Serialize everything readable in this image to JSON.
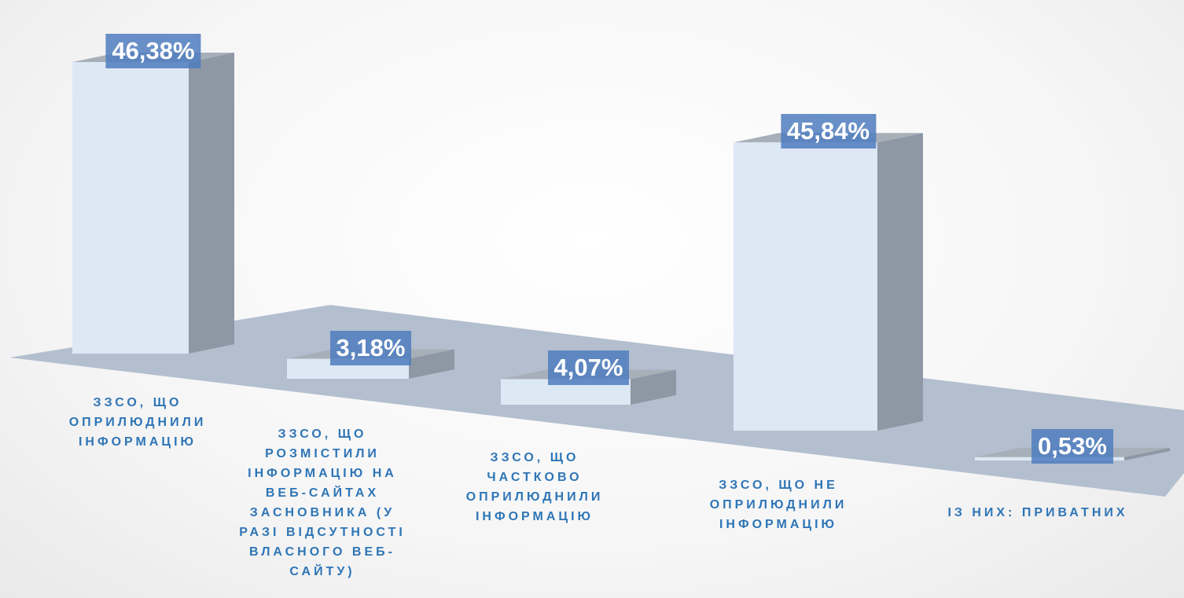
{
  "chart_data": {
    "type": "bar3d",
    "categories": [
      "ЗЗСО, ЩО ОПРИЛЮДНИЛИ ІНФОРМАЦІЮ",
      "ЗЗСО, ЩО РОЗМІСТИЛИ ІНФОРМАЦІЮ НА ВЕБ-САЙТАХ ЗАСНОВНИКА (У РАЗІ ВІДСУТНОСТІ ВЛАСНОГО ВЕБ-САЙТУ)",
      "ЗЗСО, ЩО ЧАСТКОВО ОПРИЛЮДНИЛИ ІНФОРМАЦІЮ",
      "ЗЗСО, ЩО НЕ ОПРИЛЮДНИЛИ ІНФОРМАЦІЮ",
      "ІЗ НИХ: ПРИВАТНИХ"
    ],
    "values": [
      46.38,
      3.18,
      4.07,
      45.84,
      0.53
    ],
    "value_labels": [
      "46,38%",
      "3,18%",
      "4,07%",
      "45,84%",
      "0,53%"
    ],
    "color": "#dde8f5",
    "label_color": "#2e75b6"
  }
}
